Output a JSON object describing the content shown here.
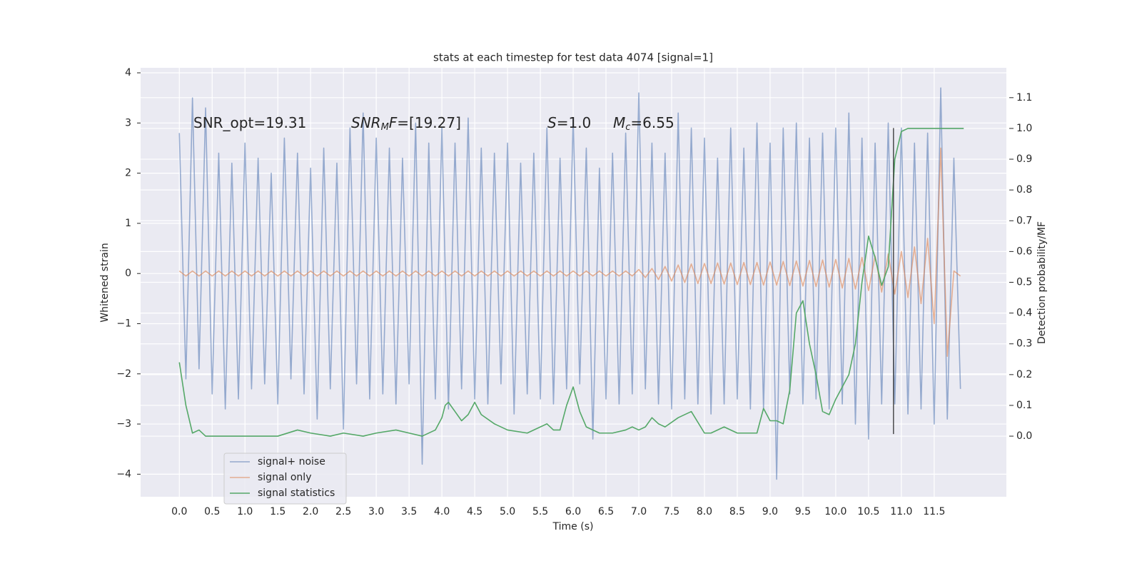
{
  "chart_data": {
    "type": "line",
    "title": "stats at each timestep for test data 4074 [signal=1]",
    "xlabel": "Time (s)",
    "ylabel": "Whitened strain",
    "y2label": "Detection probability/MF",
    "annotations": [
      [
        "SNR_opt=19.31"
      ],
      [
        "SNR",
        "M",
        "F",
        "=[19.27]"
      ],
      [
        "S",
        "=1.0"
      ],
      [
        "M",
        "c",
        "=6.55"
      ]
    ],
    "xlim": [
      -0.59,
      12.6
    ],
    "ylim": [
      -4.45,
      4.1
    ],
    "y2lim": [
      -0.197,
      1.197
    ],
    "xticks": [
      {
        "value": 0,
        "label": "0.0"
      },
      0.5,
      {
        "value": 1,
        "label": "1.0"
      },
      1.5,
      {
        "value": 2,
        "label": "2.0"
      },
      2.5,
      {
        "value": 3,
        "label": "3.0"
      },
      3.5,
      {
        "value": 4,
        "label": "4.0"
      },
      4.5,
      {
        "value": 5,
        "label": "5.0"
      },
      5.5,
      {
        "value": 6,
        "label": "6.0"
      },
      6.5,
      {
        "value": 7,
        "label": "7.0"
      },
      7.5,
      {
        "value": 8,
        "label": "8.0"
      },
      8.5,
      {
        "value": 9,
        "label": "9.0"
      },
      9.5,
      {
        "value": 10,
        "label": "10.0"
      },
      10.5,
      {
        "value": 11,
        "label": "11.0"
      },
      11.5
    ],
    "yticks": [
      {
        "value": -4,
        "label": "−4"
      },
      {
        "value": -3,
        "label": "−3"
      },
      {
        "value": -2,
        "label": "−2"
      },
      {
        "value": -1,
        "label": "−1"
      },
      0,
      1,
      2,
      3,
      4
    ],
    "y2ticks": [
      {
        "value": 0,
        "label": "0.0"
      },
      0.1,
      0.2,
      0.3,
      0.4,
      0.5,
      0.6,
      0.7,
      0.8,
      0.9,
      {
        "value": 1,
        "label": "1.0"
      },
      1.1
    ],
    "grid": true,
    "legend": "lower left",
    "x": [
      0,
      0.1,
      0.2,
      0.3,
      0.4,
      0.5,
      0.6,
      0.7,
      0.8,
      0.9,
      1,
      1.1,
      1.2,
      1.3,
      1.4,
      1.5,
      1.6,
      1.7,
      1.8,
      1.9,
      2,
      2.1,
      2.2,
      2.3,
      2.4,
      2.5,
      2.6,
      2.7,
      2.8,
      2.9,
      3,
      3.1,
      3.2,
      3.3,
      3.4,
      3.5,
      3.6,
      3.7,
      3.8,
      3.9,
      4,
      4.1,
      4.2,
      4.3,
      4.4,
      4.5,
      4.6,
      4.7,
      4.8,
      4.9,
      5,
      5.1,
      5.2,
      5.3,
      5.4,
      5.5,
      5.6,
      5.7,
      5.8,
      5.9,
      6,
      6.1,
      6.2,
      6.3,
      6.4,
      6.5,
      6.6,
      6.7,
      6.8,
      6.9,
      7,
      7.1,
      7.2,
      7.3,
      7.4,
      7.5,
      7.6,
      7.7,
      7.8,
      7.9,
      8,
      8.1,
      8.2,
      8.3,
      8.4,
      8.5,
      8.6,
      8.7,
      8.8,
      8.9,
      9,
      9.1,
      9.2,
      9.3,
      9.4,
      9.5,
      9.6,
      9.7,
      9.8,
      9.9,
      10,
      10.1,
      10.2,
      10.3,
      10.4,
      10.5,
      10.6,
      10.7,
      10.8,
      10.9,
      11,
      11.1,
      11.2,
      11.3,
      11.4,
      11.5,
      11.6,
      11.7,
      11.8,
      11.9
    ],
    "series": [
      {
        "name": "signal+ noise",
        "color": "#4c72b0",
        "values": [
          2.8,
          -2.1,
          3.5,
          -1.9,
          3.3,
          -2.4,
          2.4,
          -2.7,
          2.2,
          -2.5,
          2.6,
          -2.3,
          2.3,
          -2.2,
          2.0,
          -2.6,
          2.7,
          -2.1,
          2.4,
          -2.4,
          2.1,
          -2.9,
          2.5,
          -2.3,
          2.2,
          -3.1,
          2.9,
          -2.2,
          3.2,
          -2.5,
          2.7,
          -2.4,
          2.5,
          -2.6,
          2.3,
          -2.2,
          3.0,
          -3.8,
          2.6,
          -2.5,
          2.9,
          -2.7,
          2.6,
          -2.3,
          3.1,
          -2.5,
          2.5,
          -2.6,
          2.4,
          -2.2,
          2.6,
          -2.8,
          2.2,
          -2.4,
          2.4,
          -2.5,
          2.9,
          -2.6,
          2.3,
          -2.3,
          3.1,
          -2.2,
          2.5,
          -3.3,
          2.1,
          -2.5,
          2.4,
          -2.6,
          2.8,
          -2.4,
          3.6,
          -2.3,
          2.6,
          -2.6,
          2.4,
          -2.7,
          3.2,
          -2.5,
          2.9,
          -2.6,
          2.7,
          -2.8,
          2.3,
          -2.6,
          2.9,
          -2.5,
          2.5,
          -2.7,
          3.0,
          -2.7,
          2.6,
          -4.1,
          2.9,
          -2.4,
          3.0,
          -2.6,
          2.7,
          -2.5,
          2.8,
          -2.7,
          2.9,
          -2.6,
          3.2,
          -3.0,
          2.7,
          -3.3,
          2.6,
          -2.6,
          3.0,
          -2.6,
          2.9,
          -2.8,
          2.6,
          -2.7,
          2.8,
          -3.0,
          3.7,
          -2.9,
          2.3,
          -2.3
        ]
      },
      {
        "name": "signal only",
        "color": "#dd8452",
        "values": [
          0.05,
          -0.05,
          0.05,
          -0.05,
          0.05,
          -0.05,
          0.05,
          -0.05,
          0.05,
          -0.05,
          0.05,
          -0.05,
          0.05,
          -0.05,
          0.05,
          -0.05,
          0.05,
          -0.05,
          0.05,
          -0.05,
          0.05,
          -0.05,
          0.05,
          -0.05,
          0.05,
          -0.05,
          0.05,
          -0.05,
          0.05,
          -0.05,
          0.05,
          -0.05,
          0.05,
          -0.05,
          0.05,
          -0.05,
          0.05,
          -0.05,
          0.05,
          -0.05,
          0.05,
          -0.05,
          0.05,
          -0.05,
          0.05,
          -0.05,
          0.05,
          -0.05,
          0.05,
          -0.05,
          0.05,
          -0.05,
          0.05,
          -0.05,
          0.05,
          -0.05,
          0.05,
          -0.05,
          0.05,
          -0.05,
          0.05,
          -0.05,
          0.05,
          -0.05,
          0.05,
          -0.05,
          0.05,
          -0.05,
          0.05,
          -0.05,
          0.08,
          -0.08,
          0.1,
          -0.12,
          0.14,
          -0.15,
          0.17,
          -0.18,
          0.19,
          -0.2,
          0.2,
          -0.2,
          0.21,
          -0.21,
          0.21,
          -0.22,
          0.22,
          -0.22,
          0.22,
          -0.23,
          0.23,
          -0.23,
          0.24,
          -0.24,
          0.25,
          -0.25,
          0.26,
          -0.26,
          0.27,
          -0.27,
          0.28,
          -0.29,
          0.3,
          -0.31,
          0.32,
          -0.34,
          0.35,
          -0.37,
          0.39,
          -0.41,
          0.44,
          -0.48,
          0.53,
          -0.6,
          0.7,
          -1.0,
          2.5,
          -1.65,
          0.05,
          -0.05
        ]
      },
      {
        "name": "signal statistics",
        "color": "#55a868",
        "axis": "y2",
        "x": [
          0,
          0.1,
          0.2,
          0.3,
          0.4,
          0.5,
          1,
          1.5,
          1.8,
          2,
          2.3,
          2.5,
          2.8,
          3,
          3.3,
          3.5,
          3.7,
          3.9,
          4,
          4.05,
          4.1,
          4.2,
          4.3,
          4.4,
          4.5,
          4.6,
          4.8,
          5,
          5.3,
          5.5,
          5.6,
          5.7,
          5.8,
          5.9,
          6,
          6.1,
          6.2,
          6.4,
          6.6,
          6.8,
          6.9,
          7,
          7.1,
          7.2,
          7.3,
          7.4,
          7.6,
          7.8,
          8,
          8.1,
          8.3,
          8.5,
          8.8,
          8.9,
          9,
          9.1,
          9.2,
          9.3,
          9.4,
          9.5,
          9.6,
          9.7,
          9.8,
          9.9,
          10,
          10.2,
          10.3,
          10.4,
          10.5,
          10.6,
          10.7,
          10.8,
          10.9,
          11,
          11.1,
          11.3,
          11.5,
          11.7,
          11.95
        ],
        "values": [
          0.24,
          0.1,
          0.01,
          0.02,
          0,
          0,
          0,
          0,
          0.02,
          0.01,
          0,
          0.01,
          0,
          0.01,
          0.02,
          0.01,
          0,
          0.02,
          0.06,
          0.1,
          0.11,
          0.08,
          0.05,
          0.07,
          0.11,
          0.07,
          0.04,
          0.02,
          0.01,
          0.03,
          0.04,
          0.02,
          0.02,
          0.1,
          0.16,
          0.08,
          0.03,
          0.01,
          0.01,
          0.02,
          0.03,
          0.02,
          0.03,
          0.06,
          0.04,
          0.03,
          0.06,
          0.08,
          0.01,
          0.01,
          0.03,
          0.01,
          0.01,
          0.09,
          0.05,
          0.05,
          0.04,
          0.15,
          0.4,
          0.44,
          0.3,
          0.2,
          0.08,
          0.07,
          0.12,
          0.2,
          0.3,
          0.5,
          0.65,
          0.58,
          0.49,
          0.55,
          0.9,
          0.99,
          1,
          1,
          1,
          1,
          1
        ]
      }
    ],
    "marker_line": {
      "x": 10.88,
      "y": [
        -3.2,
        2.9
      ],
      "color": "#333333"
    }
  }
}
